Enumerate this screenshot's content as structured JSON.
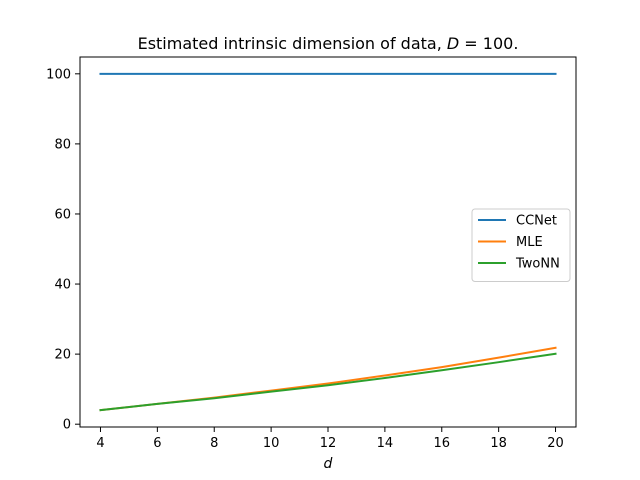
{
  "chart_data": {
    "type": "line",
    "title": "Estimated intrinsic dimension of data, D = 100.",
    "title_parts": {
      "prefix": "Estimated intrinsic dimension of data, ",
      "var": "D",
      "suffix": " = 100."
    },
    "xlabel": "d",
    "ylabel": "",
    "x": [
      4,
      6,
      8,
      10,
      12,
      14,
      16,
      18,
      20
    ],
    "xlim": [
      3.28,
      20.72
    ],
    "ylim": [
      -0.8,
      104.8
    ],
    "xticks": [
      "4",
      "6",
      "8",
      "10",
      "12",
      "14",
      "16",
      "18",
      "20"
    ],
    "yticks": [
      "0",
      "20",
      "40",
      "60",
      "80",
      "100"
    ],
    "grid": false,
    "legend_position": "center-right",
    "series": [
      {
        "name": "CCNet",
        "color": "#1f77b4",
        "values": [
          100,
          100,
          100,
          100,
          100,
          100,
          100,
          100,
          100
        ]
      },
      {
        "name": "MLE",
        "color": "#ff7f0e",
        "values": [
          4.0,
          5.8,
          7.6,
          9.6,
          11.6,
          13.9,
          16.3,
          19.0,
          21.8
        ]
      },
      {
        "name": "TwoNN",
        "color": "#2ca02c",
        "values": [
          4.0,
          5.8,
          7.4,
          9.3,
          11.1,
          13.2,
          15.4,
          17.7,
          20.1
        ]
      }
    ]
  }
}
